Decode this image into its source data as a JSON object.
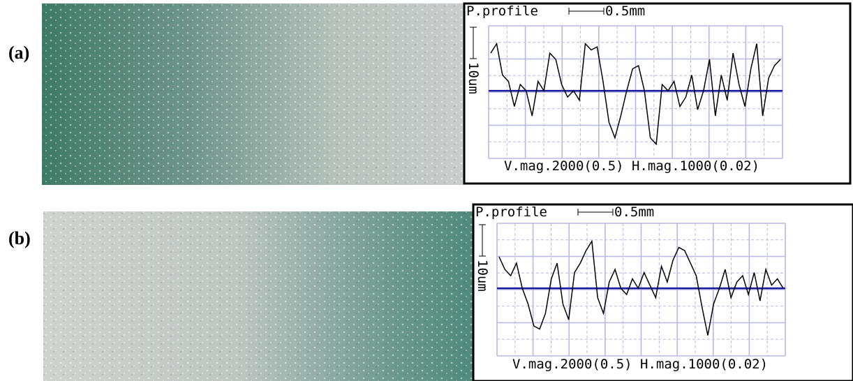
{
  "panels": [
    {
      "label": "(a)",
      "chart_data": {
        "type": "line",
        "title": "P.profile",
        "x_scale": "0.5mm",
        "y_scale": "10um",
        "footer": "V.mag.2000(0.5) H.mag.1000(0.02)",
        "color": "#000000",
        "baseline_color": "#1a1a9c",
        "values": [
          12,
          15,
          5,
          3,
          -5,
          2,
          0,
          -8,
          3,
          0,
          12,
          10,
          2,
          -2,
          0,
          -3,
          15,
          13,
          14,
          3,
          -10,
          -15,
          -8,
          0,
          7,
          8,
          0,
          -15,
          -17,
          2,
          0,
          3,
          -5,
          -2,
          5,
          -6,
          0,
          10,
          -8,
          5,
          -3,
          12,
          2,
          -5,
          7,
          15,
          -8,
          4,
          8,
          10
        ]
      }
    },
    {
      "label": "(b)",
      "chart_data": {
        "type": "line",
        "title": "P.profile",
        "x_scale": "0.5mm",
        "y_scale": "10um",
        "footer": "V.mag.2000(0.5) H.mag.1000(0.02)",
        "color": "#000000",
        "baseline_color": "#1a1a9c",
        "values": [
          10,
          6,
          4,
          8,
          0,
          -5,
          -12,
          -13,
          -8,
          3,
          8,
          -5,
          -10,
          5,
          8,
          12,
          15,
          -3,
          -8,
          2,
          6,
          0,
          -2,
          3,
          0,
          5,
          1,
          -3,
          7,
          2,
          9,
          13,
          12,
          8,
          4,
          -6,
          -15,
          -5,
          0,
          6,
          -3,
          2,
          4,
          -2,
          5,
          -4,
          6,
          1,
          3,
          0
        ]
      }
    }
  ]
}
